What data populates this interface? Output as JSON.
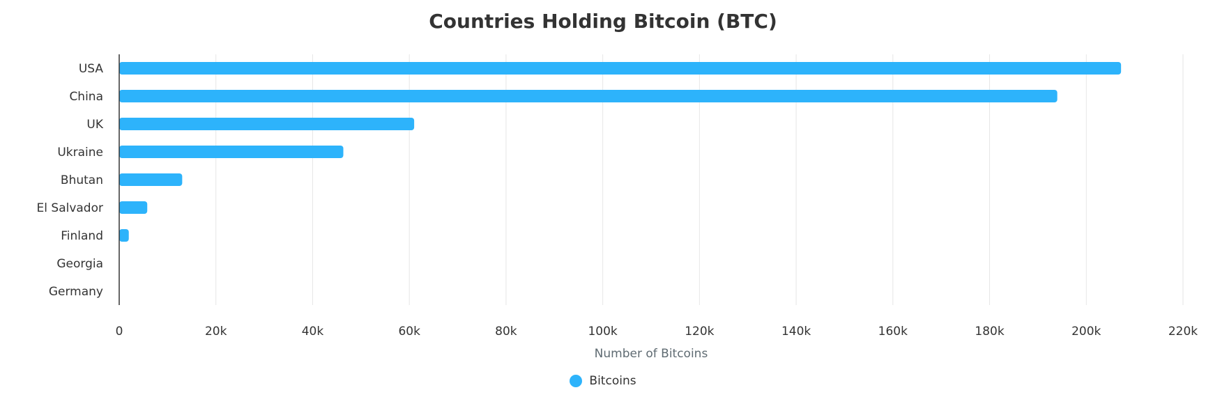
{
  "chart_data": {
    "type": "bar",
    "orientation": "horizontal",
    "title": "Countries Holding Bitcoin (BTC)",
    "xlabel": "Number of Bitcoins",
    "ylabel": "",
    "categories": [
      "USA",
      "China",
      "UK",
      "Ukraine",
      "Bhutan",
      "El Salvador",
      "Finland",
      "Georgia",
      "Germany"
    ],
    "series": [
      {
        "name": "Bitcoins",
        "color": "#2db3fb",
        "values": [
          207189,
          194000,
          61000,
          46351,
          13029,
          5800,
          1981,
          66,
          0
        ]
      }
    ],
    "xlim": [
      0,
      220000
    ],
    "xticks": [
      0,
      20000,
      40000,
      60000,
      80000,
      100000,
      120000,
      140000,
      160000,
      180000,
      200000,
      220000
    ],
    "xtick_labels": [
      "0",
      "20k",
      "40k",
      "60k",
      "80k",
      "100k",
      "120k",
      "140k",
      "160k",
      "180k",
      "200k",
      "220k"
    ],
    "grid": true,
    "legend_position": "bottom-center"
  }
}
